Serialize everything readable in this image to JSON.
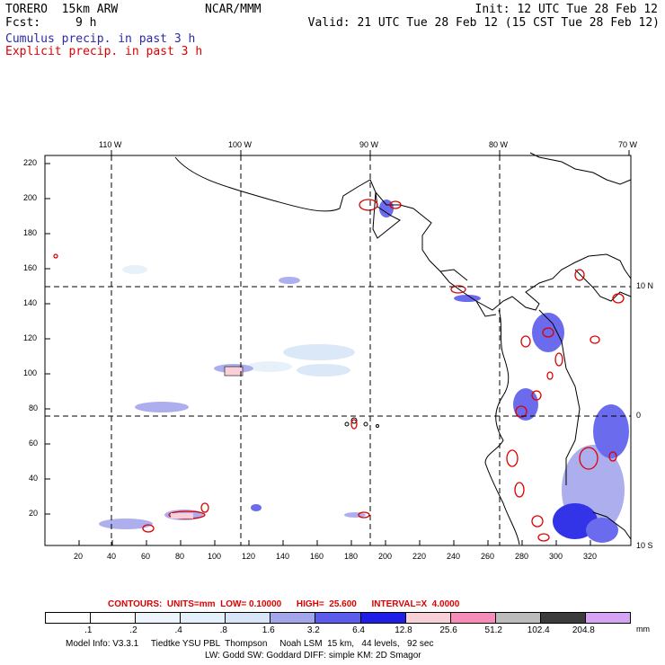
{
  "header": {
    "model": "TORERO  15km ARW",
    "org": "NCAR/MMM",
    "init": "Init: 12 UTC Tue 28 Feb 12",
    "fcst_label": "Fcst:",
    "fcst_value": "9 h",
    "valid": "Valid: 21 UTC Tue 28 Feb 12 (15 CST Tue 28 Feb 12)",
    "legend_cumulus": "Cumulus precip. in past 3 h",
    "legend_explicit": "Explicit precip. in past 3 h"
  },
  "map": {
    "top_longitudes": [
      "110 W",
      "100 W",
      "90 W",
      "80 W",
      "70 W"
    ],
    "right_latitudes": [
      "10 N",
      "0",
      "10 S"
    ],
    "left_ticks": [
      "220",
      "200",
      "180",
      "160",
      "140",
      "120",
      "100",
      "80",
      "60",
      "40",
      "20"
    ],
    "bottom_ticks": [
      "20",
      "40",
      "60",
      "80",
      "100",
      "120",
      "140",
      "160",
      "180",
      "200",
      "220",
      "240",
      "260",
      "280",
      "300",
      "320"
    ]
  },
  "contours": {
    "label": "CONTOURS:  UNITS=mm  LOW= 0.10000      HIGH=  25.600      INTERVAL=X  4.0000"
  },
  "colorbar": {
    "labels": [
      ".1",
      ".2",
      ".4",
      ".8",
      "1.6",
      "3.2",
      "6.4",
      "12.8",
      "25.6",
      "51.2",
      "102.4",
      "204.8"
    ],
    "unit": "mm",
    "colors": [
      "#ffffff",
      "#ffffff",
      "#eef4fc",
      "#e4f0fa",
      "#d6e6f8",
      "#a4a6ec",
      "#5c5cec",
      "#1e1ee6",
      "#fad0d8",
      "#f78cb8",
      "#bcbcbc",
      "#3c3c3c",
      "#d6a4f4"
    ]
  },
  "footer": {
    "line1": "Model Info: V3.3.1     Tiedtke YSU PBL  Thompson     Noah LSM  15 km,   44 levels,   92 sec",
    "line2": "LW: Godd SW: Goddard DIFF: simple KM: 2D Smagor"
  }
}
